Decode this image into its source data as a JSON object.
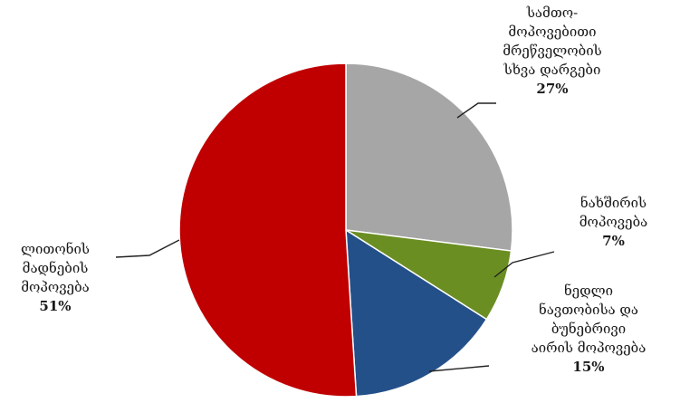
{
  "chart_data": {
    "type": "pie",
    "title": "",
    "slices": [
      {
        "name": "სამთო-მოპოვებითი მრეწველობის სხვა დარგები",
        "lines": [
          "სამთო-",
          "მოპოვებითი",
          "მრეწველობის",
          "სხვა დარგები"
        ],
        "value": 27,
        "label": "27%",
        "color": "#a6a6a6"
      },
      {
        "name": "ნახშირის მოპოვება",
        "lines": [
          "ნახშირის",
          "მოპოვება"
        ],
        "value": 7,
        "label": "7%",
        "color": "#6b8e23"
      },
      {
        "name": "ნედლი ნავთობისა და ბუნებრივი აირის მოპოვება",
        "lines": [
          "ნედლი",
          "ნავთობისა და",
          "ბუნებრივი",
          "აირის მოპოვება"
        ],
        "value": 15,
        "label": "15%",
        "color": "#24508a"
      },
      {
        "name": "ლითონის მადნების მოპოვება",
        "lines": [
          "ლითონის",
          "მადნების",
          "მოპოვება"
        ],
        "value": 51,
        "label": "51%",
        "color": "#c00000"
      }
    ],
    "legend": "none",
    "start_angle": "12 o'clock",
    "direction": "clockwise"
  }
}
